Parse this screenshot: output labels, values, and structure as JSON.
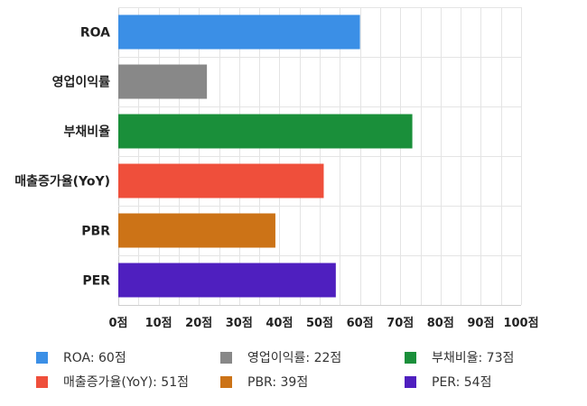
{
  "chart_data": {
    "type": "bar",
    "orientation": "horizontal",
    "title": "",
    "xlabel": "",
    "ylabel": "",
    "categories": [
      "ROA",
      "영업이익률",
      "부채비율",
      "매출증가율(YoY)",
      "PBR",
      "PER"
    ],
    "values": [
      60,
      22,
      73,
      51,
      39,
      54
    ],
    "colors": [
      "#3b8fe6",
      "#888888",
      "#1a8f3a",
      "#ef4f3b",
      "#cc7317",
      "#4f1fbf"
    ],
    "xlim": [
      0,
      100
    ],
    "xticks": [
      0,
      10,
      20,
      30,
      40,
      50,
      60,
      70,
      80,
      90,
      100
    ],
    "tick_suffix": "점",
    "grid": true,
    "legend": {
      "placement": "bottom",
      "columns": 3,
      "items": [
        {
          "label": "ROA: 60점",
          "color": "#3b8fe6"
        },
        {
          "label": "영업이익률: 22점",
          "color": "#888888"
        },
        {
          "label": "부채비율: 73점",
          "color": "#1a8f3a"
        },
        {
          "label": "매출증가율(YoY): 51점",
          "color": "#ef4f3b"
        },
        {
          "label": "PBR: 39점",
          "color": "#cc7317"
        },
        {
          "label": "PER: 54점",
          "color": "#4f1fbf"
        }
      ]
    }
  }
}
